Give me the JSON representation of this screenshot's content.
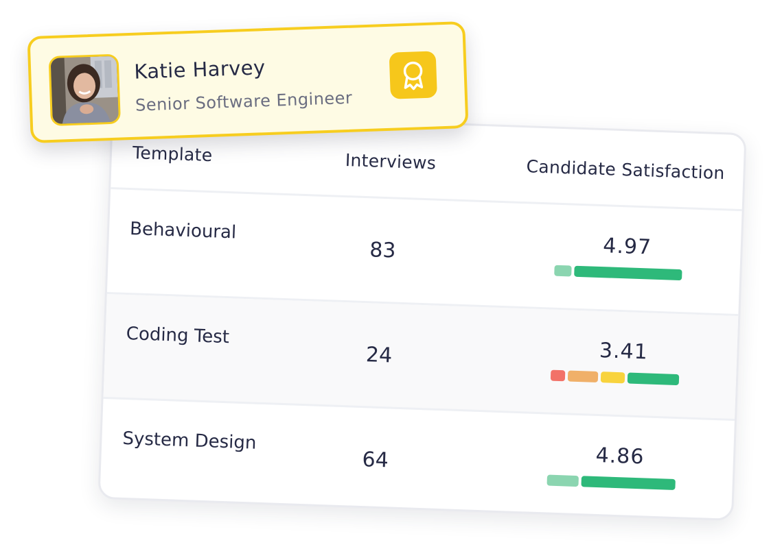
{
  "profile": {
    "name": "Katie Harvey",
    "role": "Senior Software Engineer",
    "badge_icon": "award-ribbon-icon"
  },
  "table": {
    "headers": {
      "template": "Template",
      "interviews": "Interviews",
      "satisfaction": "Candidate Satisfaction"
    },
    "rows": [
      {
        "template": "Behavioural",
        "interviews": "83",
        "score": "4.97",
        "rating_bar": [
          {
            "color": "#8bd5b0",
            "share": 0.14
          },
          {
            "color": "#2eb97a",
            "share": 0.86
          }
        ]
      },
      {
        "template": "Coding Test",
        "interviews": "24",
        "score": "3.41",
        "rating_bar": [
          {
            "color": "#f27268",
            "share": 0.12
          },
          {
            "color": "#f0b069",
            "share": 0.25
          },
          {
            "color": "#f8d33d",
            "share": 0.2
          },
          {
            "color": "#2eb97a",
            "share": 0.43
          }
        ]
      },
      {
        "template": "System Design",
        "interviews": "64",
        "score": "4.86",
        "rating_bar": [
          {
            "color": "#8bd5b0",
            "share": 0.25
          },
          {
            "color": "#2eb97a",
            "share": 0.75
          }
        ]
      }
    ]
  },
  "colors": {
    "accent_yellow": "#f7cd1f",
    "card_bg_yellow": "#fefbe4",
    "text_dark": "#262a45",
    "text_muted": "#6a6d80",
    "green": "#2eb97a",
    "light_green": "#8bd5b0",
    "red": "#f27268",
    "orange": "#f0b069",
    "yellow": "#f8d33d"
  }
}
